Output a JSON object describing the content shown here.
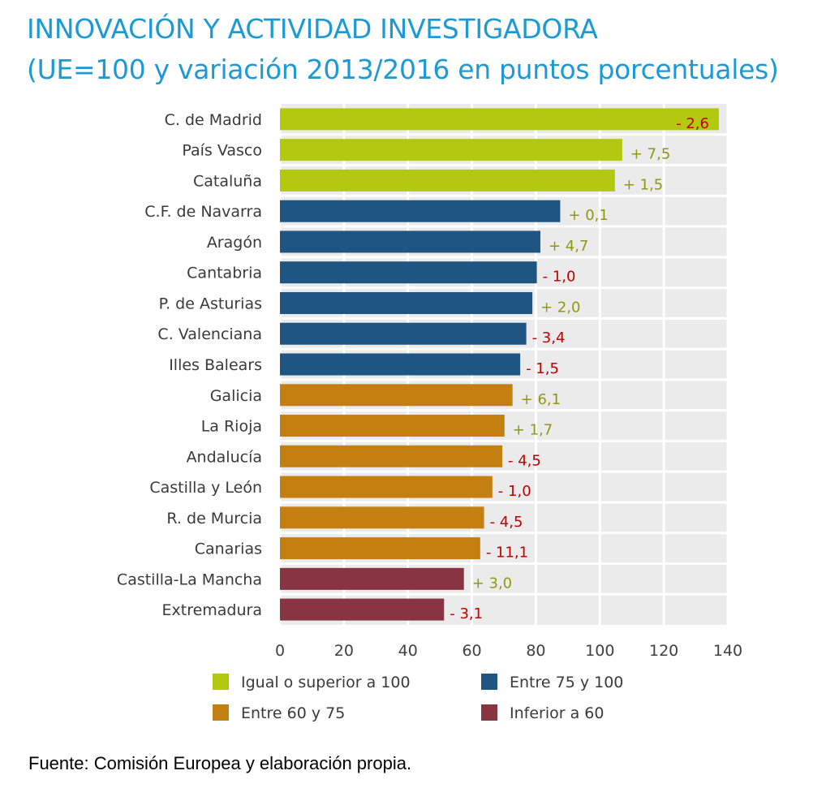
{
  "title_line1": "INNOVACIÓN Y ACTIVIDAD INVESTIGADORA",
  "title_line2": "(UE=100 y variación 2013/2016 en puntos porcentuales)",
  "source": "Fuente: Comisión Europea y elaboración propia.",
  "colors": {
    "high": "#b3c90f",
    "mid_high": "#1e5583",
    "mid": "#c47f11",
    "low": "#873542",
    "pos_label": "#8a9a12",
    "neg_label": "#c00000",
    "plot_bg": "#ebebec"
  },
  "chart_data": {
    "type": "bar",
    "orientation": "horizontal",
    "title": "INNOVACIÓN Y ACTIVIDAD INVESTIGADORA (UE=100 y variación 2013/2016 en puntos porcentuales)",
    "xlabel": "",
    "ylabel": "",
    "xlim": [
      0,
      140
    ],
    "xticks": [
      "0",
      "20",
      "40",
      "60",
      "80",
      "100",
      "120",
      "140"
    ],
    "grid": true,
    "legend_position": "bottom",
    "legend": [
      {
        "key": "high",
        "label": "Igual o superior a 100"
      },
      {
        "key": "mid_high",
        "label": "Entre 75 y 100"
      },
      {
        "key": "mid",
        "label": "Entre 60 y 75"
      },
      {
        "key": "low",
        "label": "Inferior a 60"
      }
    ],
    "categories": [
      "C. de Madrid",
      "País Vasco",
      "Cataluña",
      "C.F. de Navarra",
      "Aragón",
      "Cantabria",
      "P. de Asturias",
      "C. Valenciana",
      "Illes Balears",
      "Galicia",
      "La Rioja",
      "Andalucía",
      "Castilla y León",
      "R. de Murcia",
      "Canarias",
      "Castilla-La Mancha",
      "Extremadura"
    ],
    "values": [
      137.2,
      107.0,
      104.7,
      87.6,
      81.4,
      80.3,
      78.9,
      77.0,
      75.1,
      72.7,
      70.2,
      69.5,
      66.4,
      63.8,
      62.6,
      57.5,
      51.3
    ],
    "groups": [
      "high",
      "high",
      "high",
      "mid_high",
      "mid_high",
      "mid_high",
      "mid_high",
      "mid_high",
      "mid_high",
      "mid",
      "mid",
      "mid",
      "mid",
      "mid",
      "mid",
      "low",
      "low"
    ],
    "variation_labels": [
      "- 2,6",
      "+ 7,5",
      "+ 1,5",
      "+ 0,1",
      "+ 4,7",
      "- 1,0",
      "+ 2,0",
      "- 3,4",
      "- 1,5",
      "+ 6,1",
      "+ 1,7",
      "- 4,5",
      "- 1,0",
      "- 4,5",
      "- 11,1",
      "+ 3,0",
      "- 3,1"
    ],
    "variation_values": [
      -2.6,
      7.5,
      1.5,
      0.1,
      4.7,
      -1.0,
      2.0,
      -3.4,
      -1.5,
      6.1,
      1.7,
      -4.5,
      -1.0,
      -4.5,
      -11.1,
      3.0,
      -3.1
    ]
  }
}
